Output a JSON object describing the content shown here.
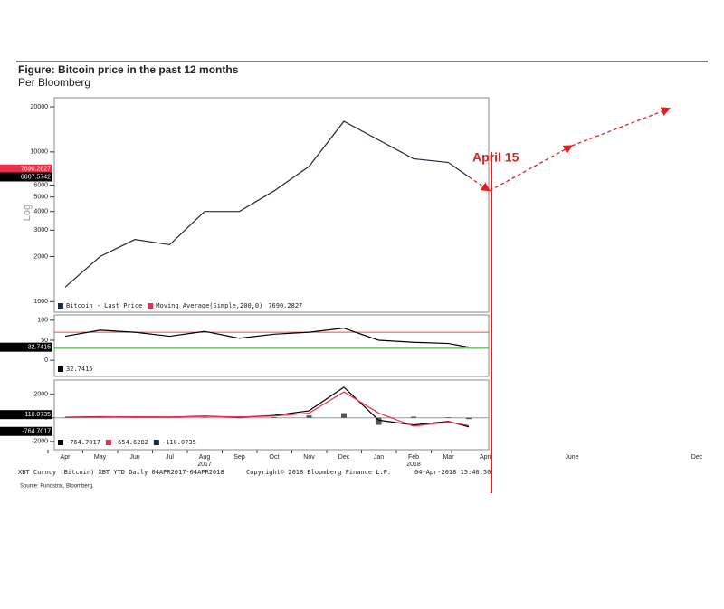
{
  "title": "Figure: Bitcoin price in the past 12 months",
  "subtitle": "Per Bloomberg",
  "source": "Source: Fundstrat, Bloomberg.",
  "footer": {
    "security": "XBT Curncy (Bitcoin) XBT YTD  Daily 04APR2017-04APR2018",
    "copyright": "Copyright© 2018 Bloomberg Finance L.P.",
    "timestamp": "04-Apr-2018 15:40:50"
  },
  "chart_data": [
    {
      "type": "line",
      "log_scale": true,
      "y_label": "Log",
      "categories": [
        "Apr",
        "May",
        "Jun",
        "Jul",
        "Aug",
        "Sep",
        "Oct",
        "Nov",
        "Dec",
        "Jan",
        "Feb",
        "Mar",
        null
      ],
      "years": [
        "2017",
        "2018"
      ],
      "series": [
        {
          "name": "Bitcoin - Last Price",
          "color": "#1c2b3a",
          "values": [
            1250,
            2000,
            2600,
            2400,
            4000,
            4000,
            5500,
            8000,
            16000,
            12000,
            9000,
            8500,
            6807.5742
          ]
        }
      ],
      "moving_average": {
        "name": "Moving Average(Simple,200,0)",
        "color": "#e8304a",
        "value": 7690.2827
      },
      "ylim": [
        850,
        23000
      ],
      "yticks": [
        1000,
        2000,
        3000,
        4000,
        5000,
        6000,
        10000,
        20000
      ],
      "annotation": {
        "text": "April 15",
        "color": "#e02020"
      },
      "projection": {
        "categories": [
          "April",
          "June",
          "Dec"
        ],
        "values": [
          5500,
          11000,
          19500
        ],
        "color": "#e02020"
      }
    },
    {
      "type": "line",
      "ylim": [
        -40,
        113
      ],
      "yticks": [
        0,
        50,
        100
      ],
      "levels": [
        {
          "value": 70,
          "color": "#e05050"
        },
        {
          "value": 30,
          "color": "#2ca02c"
        }
      ],
      "series": [
        {
          "color": "#000000",
          "values": [
            60,
            75,
            70,
            60,
            72,
            55,
            65,
            70,
            80,
            50,
            45,
            42,
            32.7415
          ]
        }
      ]
    },
    {
      "type": "macd",
      "ylim": [
        -2700,
        3200
      ],
      "yticks": [
        -2000,
        0,
        2000
      ],
      "series": [
        {
          "color": "#000000",
          "values": [
            50,
            100,
            80,
            60,
            150,
            50,
            200,
            600,
            2600,
            -200,
            -600,
            -300,
            -764.7017
          ]
        },
        {
          "color": "#e8304a",
          "values": [
            30,
            80,
            90,
            70,
            120,
            80,
            150,
            400,
            2200,
            400,
            -700,
            -350,
            -654.6282
          ]
        },
        {
          "color": "#1c2b3a",
          "values": [
            20,
            20,
            -10,
            -10,
            30,
            -30,
            50,
            200,
            400,
            -600,
            100,
            50,
            -110.0735
          ]
        }
      ]
    }
  ]
}
